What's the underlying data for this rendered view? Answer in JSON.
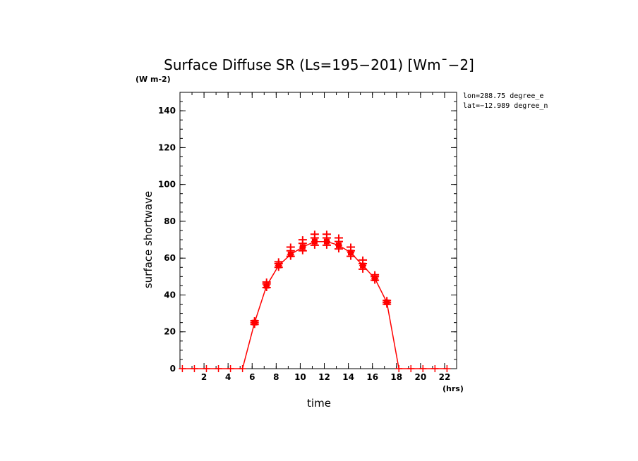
{
  "chart_data": {
    "type": "line",
    "title": "Surface Diffuse SR (Ls=195−201) [Wm¯−2]",
    "y_units": "(W m-2)",
    "x_units": "(hrs)",
    "xlabel": "time",
    "ylabel": "surface shortwave",
    "xlim": [
      0,
      23
    ],
    "ylim": [
      0,
      150
    ],
    "x_ticks": [
      2,
      4,
      6,
      8,
      10,
      12,
      14,
      16,
      18,
      20,
      22
    ],
    "y_ticks": [
      0,
      20,
      40,
      60,
      80,
      100,
      120,
      140
    ],
    "annotations": [
      "lon=288.75 degree_e",
      "lat=−12.989 degree_n"
    ],
    "colors": {
      "series": "#ff0000",
      "axes": "#000000"
    },
    "series": [
      {
        "line": true,
        "x": [
          0.2,
          1.2,
          2.2,
          3.2,
          4.2,
          5.2,
          6.2,
          7.2,
          8.2,
          9.2,
          10.2,
          11.2,
          12.2,
          13.2,
          14.2,
          15.2,
          16.2,
          17.2,
          18.2,
          19.2,
          20.2,
          21.2,
          22.2
        ],
        "y": [
          0,
          0,
          0,
          0,
          0,
          0,
          25,
          45,
          56,
          62,
          66,
          69,
          69,
          67,
          63,
          56,
          49,
          36,
          0,
          0,
          0,
          0,
          0
        ]
      },
      {
        "line": false,
        "x": [
          6.2,
          7.2,
          8.2,
          9.2,
          10.2,
          11.2,
          12.2,
          13.2,
          14.2,
          15.2,
          16.2,
          17.2
        ],
        "y": [
          26,
          47,
          58,
          66,
          70,
          73,
          73,
          71,
          66,
          59,
          51,
          37
        ]
      },
      {
        "line": false,
        "x": [
          6.2,
          7.2,
          8.2,
          9.2,
          10.2,
          11.2,
          12.2,
          13.2,
          14.2,
          15.2,
          16.2,
          17.2
        ],
        "y": [
          24,
          44,
          55,
          61,
          64,
          67,
          67,
          65,
          61,
          54,
          48,
          35
        ]
      },
      {
        "line": false,
        "x": [
          6.2,
          7.2,
          8.2,
          9.2,
          10.2,
          11.2,
          12.2,
          13.2,
          14.2,
          15.2,
          16.2,
          17.2
        ],
        "y": [
          25,
          46,
          57,
          64,
          68,
          71,
          71,
          69,
          64,
          57,
          50,
          36
        ]
      }
    ]
  }
}
